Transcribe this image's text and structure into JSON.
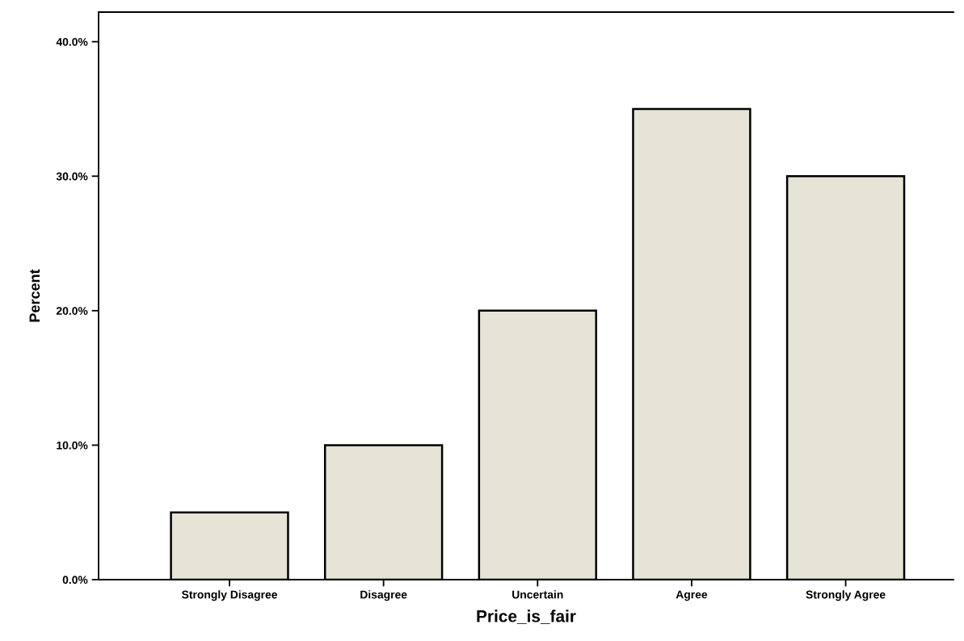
{
  "chart_data": {
    "type": "bar",
    "xlabel": "Price_is_fair",
    "ylabel": "Percent",
    "categories": [
      "Strongly Disagree",
      "Disagree",
      "Uncertain",
      "Agree",
      "Strongly Agree"
    ],
    "values": [
      5,
      10,
      20,
      35,
      30
    ],
    "color": "#e6e4d6",
    "ylim": [
      0,
      42.2
    ],
    "yticks": [
      {
        "value": 0,
        "label": "0.0%"
      },
      {
        "value": 10,
        "label": "10.0%"
      },
      {
        "value": 20,
        "label": "20.0%"
      },
      {
        "value": 30,
        "label": "30.0%"
      },
      {
        "value": 40,
        "label": "40.0%"
      }
    ],
    "grid": false,
    "legend": false
  }
}
